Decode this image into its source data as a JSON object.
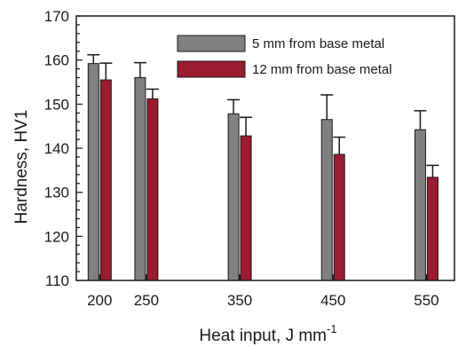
{
  "chart_data": {
    "type": "bar",
    "categories": [
      "200",
      "250",
      "350",
      "450",
      "550"
    ],
    "x": [
      200,
      250,
      350,
      450,
      550
    ],
    "series": [
      {
        "name": "5 mm from base metal",
        "color": "#808080",
        "values": [
          159.2,
          156.0,
          147.8,
          146.5,
          144.2
        ],
        "error": [
          2.0,
          3.4,
          3.2,
          5.6,
          4.3
        ]
      },
      {
        "name": "12 mm from base metal",
        "color": "#9b1b30",
        "values": [
          155.5,
          151.2,
          142.8,
          138.6,
          133.4
        ],
        "error": [
          3.8,
          2.2,
          4.2,
          3.9,
          2.7
        ]
      }
    ],
    "xlabel": "Heat input, J mm",
    "xlabel_sup": "-1",
    "ylabel": "Hardness, HV1",
    "ylim": [
      110,
      170
    ],
    "yticks": [
      110,
      120,
      130,
      140,
      150,
      160,
      170
    ],
    "xlim": [
      175,
      580
    ],
    "legend_position": "top-right",
    "grid": false
  }
}
